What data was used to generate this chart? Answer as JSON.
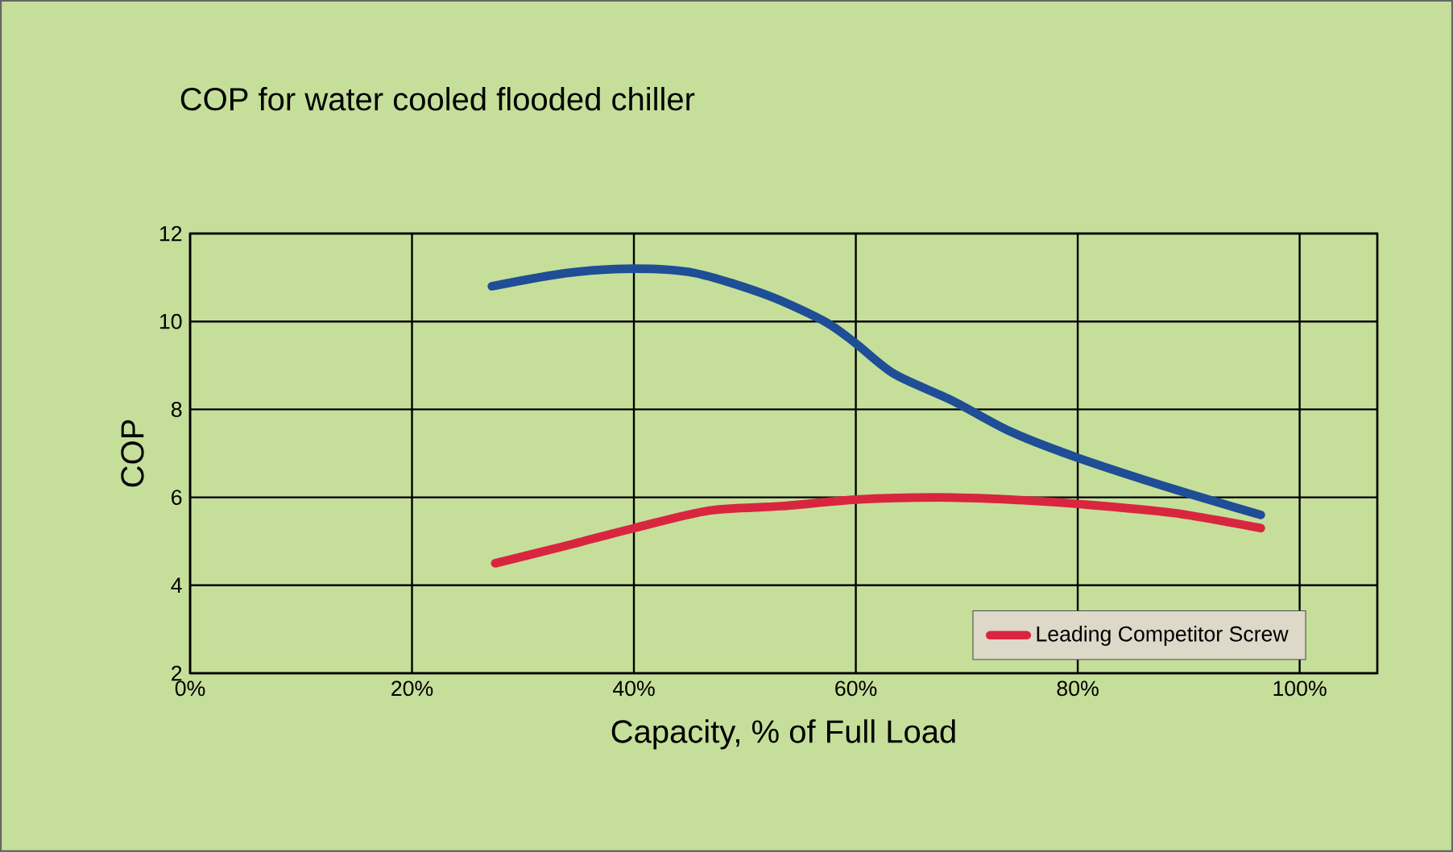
{
  "chart_data": {
    "type": "line",
    "title": "COP for water cooled flooded chiller",
    "xlabel": "Capacity, % of Full Load",
    "ylabel": "COP",
    "xlim": [
      0,
      107
    ],
    "ylim": [
      2,
      12
    ],
    "xticks": [
      {
        "value": 0,
        "label": "0%"
      },
      {
        "value": 20,
        "label": "20%"
      },
      {
        "value": 40,
        "label": "40%"
      },
      {
        "value": 60,
        "label": "60%"
      },
      {
        "value": 80,
        "label": "80%"
      },
      {
        "value": 100,
        "label": "100%"
      }
    ],
    "yticks": [
      2,
      4,
      6,
      8,
      10,
      12
    ],
    "grid": true,
    "legend": "bottom right",
    "series": [
      {
        "color": "#1f4e96",
        "x": [
          27.2,
          33.9,
          40,
          45.5,
          52,
          57.2,
          60,
          63.5,
          68.7,
          73.9,
          80,
          88.5,
          96.5
        ],
        "values": [
          10.8,
          11.1,
          11.2,
          11.1,
          10.6,
          10.0,
          9.5,
          8.8,
          8.2,
          7.5,
          6.9,
          6.2,
          5.6
        ]
      },
      {
        "name": "Leading Competitor Screw",
        "color": "#d9263f",
        "x": [
          27.5,
          33.9,
          40,
          46.8,
          53.3,
          60,
          67.4,
          73.9,
          80,
          88.5,
          96.5
        ],
        "values": [
          4.5,
          4.9,
          5.3,
          5.7,
          5.8,
          5.95,
          6.0,
          5.95,
          5.85,
          5.65,
          5.3
        ]
      }
    ]
  }
}
